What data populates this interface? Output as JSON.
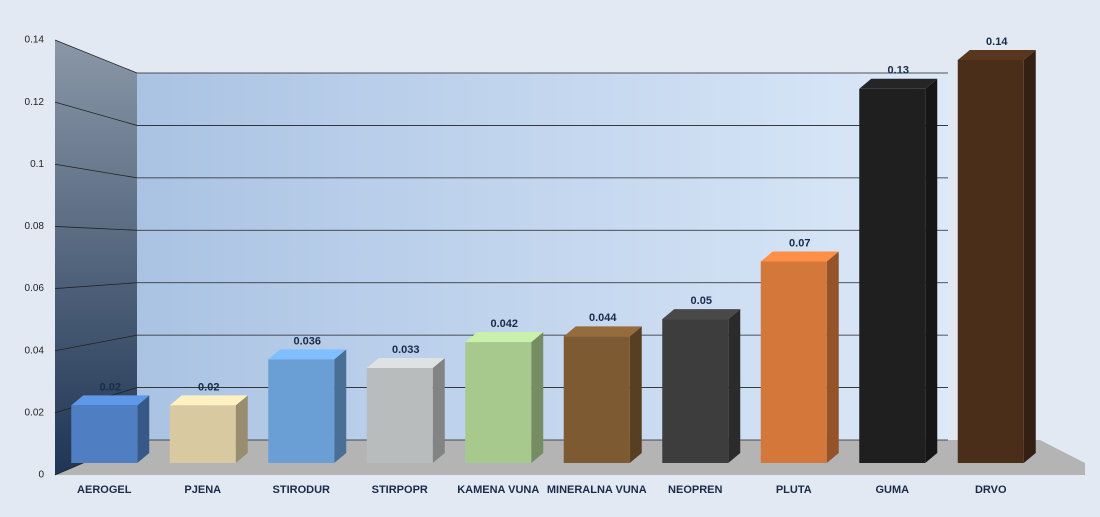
{
  "chart_data": {
    "type": "bar3d",
    "categories": [
      "AEROGEL",
      "PJENA",
      "STIRODUR",
      "STIRPOPR",
      "KAMENA VUNA",
      "MINERALNA VUNA",
      "NEOPREN",
      "PLUTA",
      "GUMA",
      "DRVO"
    ],
    "values": [
      0.02,
      0.02,
      0.036,
      0.033,
      0.042,
      0.044,
      0.05,
      0.07,
      0.13,
      0.14
    ],
    "colors": [
      "#4f7fc2",
      "#d9c9a0",
      "#6a9fd6",
      "#b9bcbc",
      "#a8c98e",
      "#7d5a32",
      "#3d3d3d",
      "#d4773a",
      "#1f1f1f",
      "#4a2e1a"
    ],
    "ylim": [
      0,
      0.14
    ],
    "yticks": [
      0,
      0.02,
      0.04,
      0.06,
      0.08,
      0.1,
      0.12,
      0.14
    ],
    "grid": true
  }
}
